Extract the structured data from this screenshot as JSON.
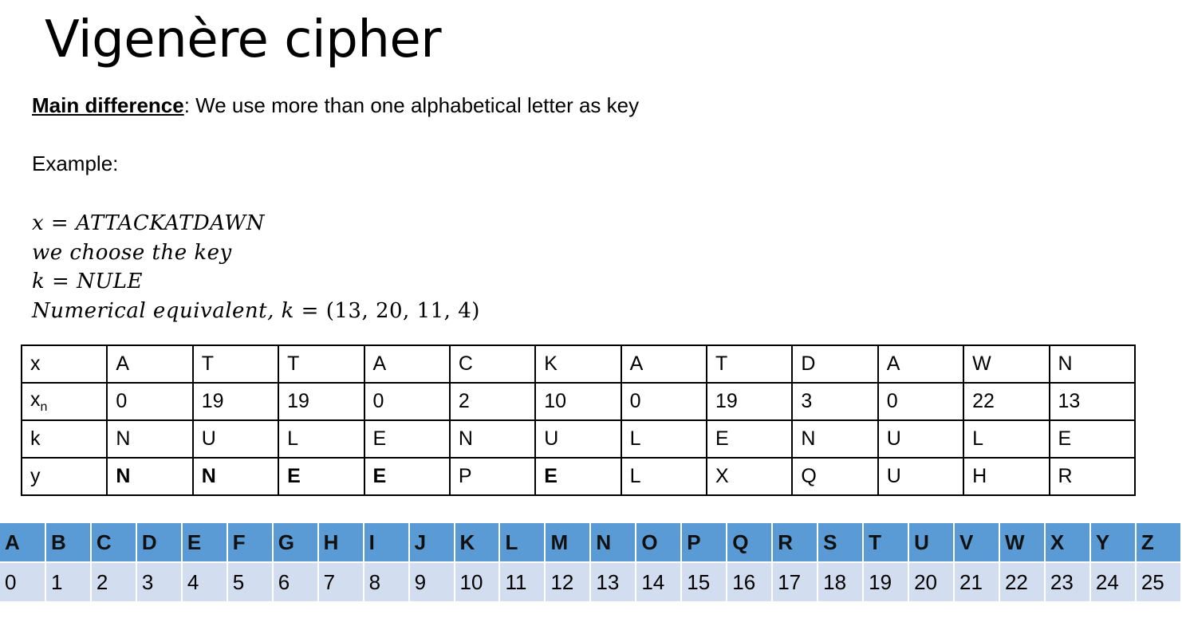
{
  "title": "Vigenère cipher",
  "intro": {
    "label": "Main difference",
    "text": ": We use more than one alphabetical letter as key"
  },
  "example_label": "Example:",
  "math": {
    "line1_var": "x",
    "line1_eq": " = ",
    "line1_val": "ATTACKATDAWN",
    "line2": "we choose the key",
    "line3_var": "k",
    "line3_eq": " = ",
    "line3_val": "NULE",
    "line4_text": "Numerical equivalent, k",
    "line4_eq": " = ",
    "line4_val": "(13, 20, 11, 4)"
  },
  "table": {
    "rows": [
      {
        "label": "x",
        "cells": [
          "A",
          "T",
          "T",
          "A",
          "C",
          "K",
          "A",
          "T",
          "D",
          "A",
          "W",
          "N"
        ],
        "bold": []
      },
      {
        "label_main": "x",
        "label_sub": "n",
        "cells": [
          "0",
          "19",
          "19",
          "0",
          "2",
          "10",
          "0",
          "19",
          "3",
          "0",
          "22",
          "13"
        ],
        "bold": []
      },
      {
        "label": "k",
        "cells": [
          "N",
          "U",
          "L",
          "E",
          "N",
          "U",
          "L",
          "E",
          "N",
          "U",
          "L",
          "E"
        ],
        "bold": []
      },
      {
        "label": "y",
        "cells": [
          "N",
          "N",
          "E",
          "E",
          "P",
          "E",
          "L",
          "X",
          "Q",
          "U",
          "H",
          "R"
        ],
        "bold": [
          0,
          1,
          2,
          3,
          5
        ]
      }
    ]
  },
  "alphabet": {
    "letters": [
      "A",
      "B",
      "C",
      "D",
      "E",
      "F",
      "G",
      "H",
      "I",
      "J",
      "K",
      "L",
      "M",
      "N",
      "O",
      "P",
      "Q",
      "R",
      "S",
      "T",
      "U",
      "V",
      "W",
      "X",
      "Y",
      "Z"
    ],
    "numbers": [
      "0",
      "1",
      "2",
      "3",
      "4",
      "5",
      "6",
      "7",
      "8",
      "9",
      "10",
      "11",
      "12",
      "13",
      "14",
      "15",
      "16",
      "17",
      "18",
      "19",
      "20",
      "21",
      "22",
      "23",
      "24",
      "25"
    ],
    "letter_bg": "#5b9bd5",
    "number_bg": "#d2deef"
  }
}
